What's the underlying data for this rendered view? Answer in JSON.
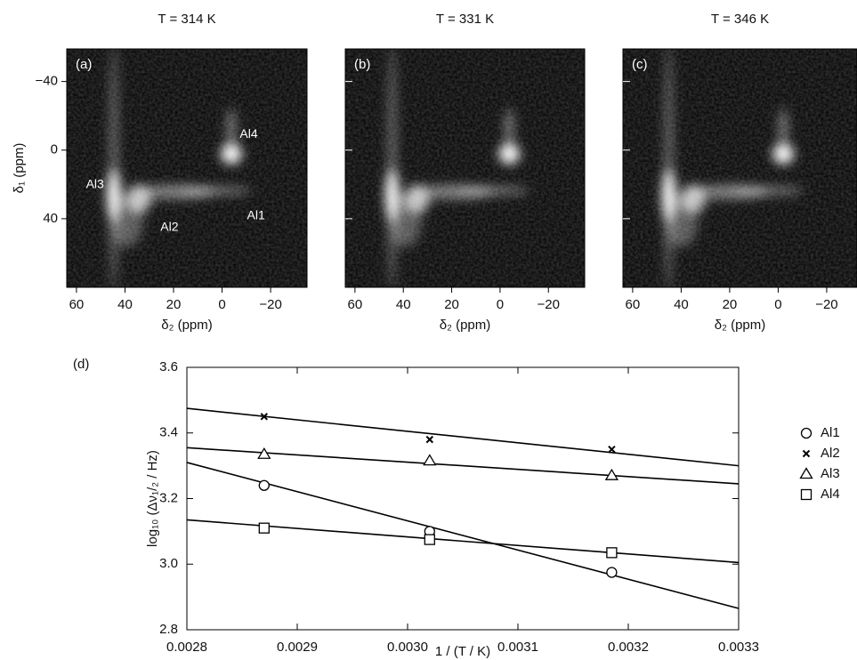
{
  "chart_data": [
    {
      "type": "spectrum",
      "title": "T = 314 K",
      "panel_label": "(a)",
      "xlabel": "δ₂ (ppm)",
      "ylabel": "δ₁ (ppm)",
      "xlim": [
        64,
        -35
      ],
      "xticks": [
        60,
        40,
        20,
        0,
        {
          "value": -20,
          "label": "−20"
        }
      ],
      "ylim": [
        -59,
        80
      ],
      "yticks": [
        {
          "value": -40,
          "label": "−40"
        },
        0,
        40
      ],
      "annotations": [
        "Al4",
        "Al3",
        "Al2",
        "Al1"
      ]
    },
    {
      "type": "spectrum",
      "title": "T = 331 K",
      "panel_label": "(b)",
      "xlabel": "δ₂ (ppm)",
      "xlim": [
        64,
        -35
      ],
      "xticks": [
        60,
        40,
        20,
        0,
        {
          "value": -20,
          "label": "−20"
        }
      ],
      "ylim": [
        -59,
        80
      ],
      "yticks": [
        -40,
        0,
        40
      ]
    },
    {
      "type": "spectrum",
      "title": "T = 346 K",
      "panel_label": "(c)",
      "xlabel": "δ₂ (ppm)",
      "xlim": [
        64,
        -32.5
      ],
      "xticks": [
        60,
        40,
        20,
        0,
        {
          "value": -20,
          "label": "−20"
        }
      ],
      "ylim": [
        -59,
        80
      ],
      "yticks": [
        -40,
        0,
        40
      ]
    },
    {
      "type": "scatter",
      "panel_label": "(d)",
      "xlabel": "1 / (T / K)",
      "ylabel": "log₁₀ (Δν₁/₂ / Hz)",
      "xlim": [
        0.0028,
        0.0033
      ],
      "xticks": [
        0.0028,
        0.0029,
        {
          "value": 0.003,
          "label": "0.0030"
        },
        0.0031,
        0.0032,
        0.0033
      ],
      "ylim": [
        2.8,
        3.6
      ],
      "yticks": [
        2.8,
        {
          "value": 3,
          "label": "3.0"
        },
        3.2,
        3.4,
        3.6
      ],
      "fit_x": [
        0.0028,
        0.0033
      ],
      "series": [
        {
          "name": "Al1",
          "marker": "circle",
          "color": "#000000",
          "x": [
            0.00287,
            0.00302,
            0.003185
          ],
          "values": [
            3.24,
            3.1,
            2.975
          ],
          "fit_values": [
            3.31,
            2.865
          ]
        },
        {
          "name": "Al2",
          "marker": "x",
          "color": "#000000",
          "x": [
            0.00287,
            0.00302,
            0.003185
          ],
          "values": [
            3.45,
            3.38,
            3.35
          ],
          "fit_values": [
            3.475,
            3.3
          ]
        },
        {
          "name": "Al3",
          "marker": "triangle",
          "color": "#000000",
          "x": [
            0.00287,
            0.00302,
            0.003185
          ],
          "values": [
            3.335,
            3.315,
            3.27
          ],
          "fit_values": [
            3.355,
            3.245
          ]
        },
        {
          "name": "Al4",
          "marker": "square",
          "color": "#000000",
          "x": [
            0.00287,
            0.00302,
            0.003185
          ],
          "values": [
            3.11,
            3.075,
            3.035
          ],
          "fit_values": [
            3.135,
            3.005
          ]
        }
      ]
    }
  ]
}
